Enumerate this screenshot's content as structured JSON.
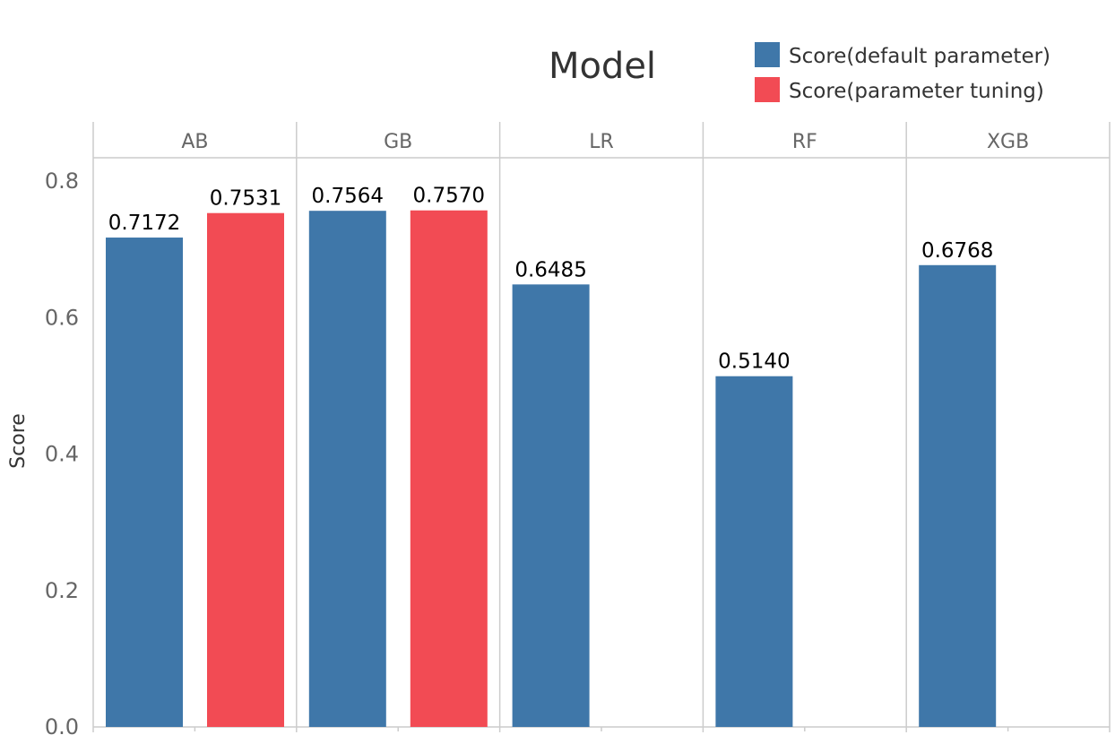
{
  "chart_data": {
    "type": "bar",
    "title": "Model",
    "xlabel": "",
    "ylabel": "Score",
    "ylim": [
      0,
      0.84
    ],
    "yticks": [
      0.0,
      0.2,
      0.4,
      0.6,
      0.8
    ],
    "ytick_labels": [
      "0.0",
      "0.2",
      "0.4",
      "0.6",
      "0.8"
    ],
    "grid": false,
    "legend_position": "top-right",
    "panels": [
      "AB",
      "GB",
      "LR",
      "RF",
      "XGB"
    ],
    "series": [
      {
        "name": "Score(default parameter)",
        "color": "#3f77a9",
        "values": [
          0.7172,
          0.7564,
          0.6485,
          0.514,
          0.6768
        ],
        "labels": [
          "0.7172",
          "0.7564",
          "0.6485",
          "0.5140",
          "0.6768"
        ]
      },
      {
        "name": "Score(parameter tuning)",
        "color": "#f24b54",
        "values": [
          0.7531,
          0.757,
          null,
          null,
          null
        ],
        "labels": [
          "0.7531",
          "0.7570",
          null,
          null,
          null
        ]
      }
    ]
  }
}
